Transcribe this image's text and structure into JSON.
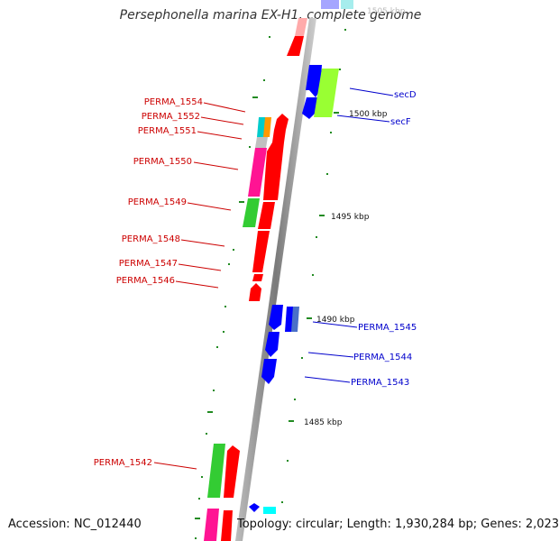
{
  "title": "Persephonella marina EX-H1, complete genome",
  "accession": "Accession: NC_012440",
  "summary": "Topology: circular; Length: 1,930,284 bp; Genes: 2,023",
  "kbp_labels": [
    {
      "text": "1505 kbp",
      "faded": true
    },
    {
      "text": "1500 kbp",
      "faded": false
    },
    {
      "text": "1495 kbp",
      "faded": false
    },
    {
      "text": "1490 kbp",
      "faded": false
    },
    {
      "text": "1485 kbp",
      "faded": false
    }
  ],
  "left_genes": [
    "PERMA_1554",
    "PERMA_1552",
    "PERMA_1551",
    "PERMA_1550",
    "PERMA_1549",
    "PERMA_1548",
    "PERMA_1547",
    "PERMA_1546",
    "PERMA_1542"
  ],
  "right_genes": [
    "secD",
    "secF",
    "PERMA_1545",
    "PERMA_1544",
    "PERMA_1543"
  ],
  "colors": {
    "forward_strand": "#ff0000",
    "reverse_strand": "#0000ff",
    "label_left": "#cc0000",
    "label_right": "#0000cc",
    "backbone": "#888888",
    "tick": "#228b22",
    "category_magenta": "#ff1493",
    "category_green": "#33cc33",
    "category_lime": "#99ff33",
    "category_cyan": "#00cccc",
    "category_orange": "#ff9900",
    "category_grey": "#c0c0c0"
  }
}
